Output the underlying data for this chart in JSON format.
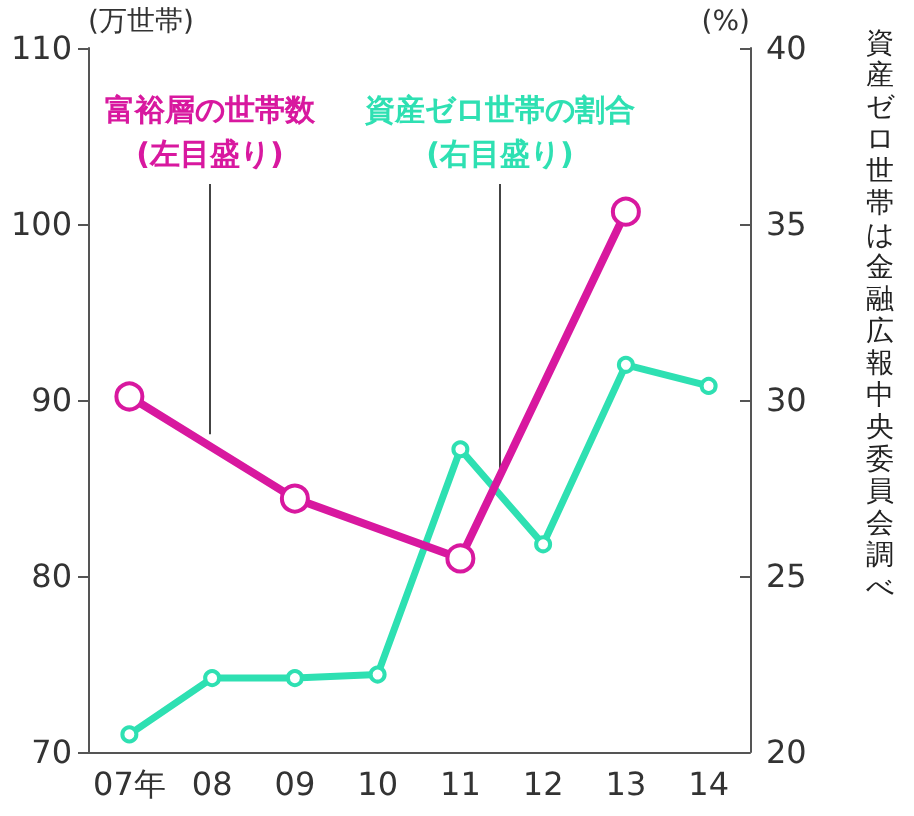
{
  "chart_data": {
    "type": "line",
    "ylabel": "(万世帯)",
    "y2label": "(%)",
    "categories": [
      "07年",
      "08",
      "09",
      "10",
      "11",
      "12",
      "13",
      "14"
    ],
    "series": [
      {
        "name": "富裕層の世帯数(左目盛り)",
        "color": "#d8189f",
        "values": [
          90.2,
          null,
          84.4,
          null,
          81.0,
          null,
          100.7,
          null
        ]
      },
      {
        "name": "資産ゼロ世帯の割合(右目盛り)",
        "color": "#2ee0b2",
        "axis": "y2",
        "values": [
          20.5,
          22.1,
          22.1,
          22.2,
          28.6,
          25.9,
          31.0,
          30.4
        ]
      }
    ],
    "ylim": [
      70,
      110
    ],
    "yticks": [
      70,
      80,
      90,
      100,
      110
    ],
    "y2lim": [
      20,
      40
    ],
    "y2ticks": [
      20,
      25,
      30,
      35,
      40
    ],
    "annotations": [
      "資産ゼロ世帯は金融広報中央委員会調べ"
    ],
    "grid": false,
    "marker": "circle",
    "line_style": "solid"
  }
}
